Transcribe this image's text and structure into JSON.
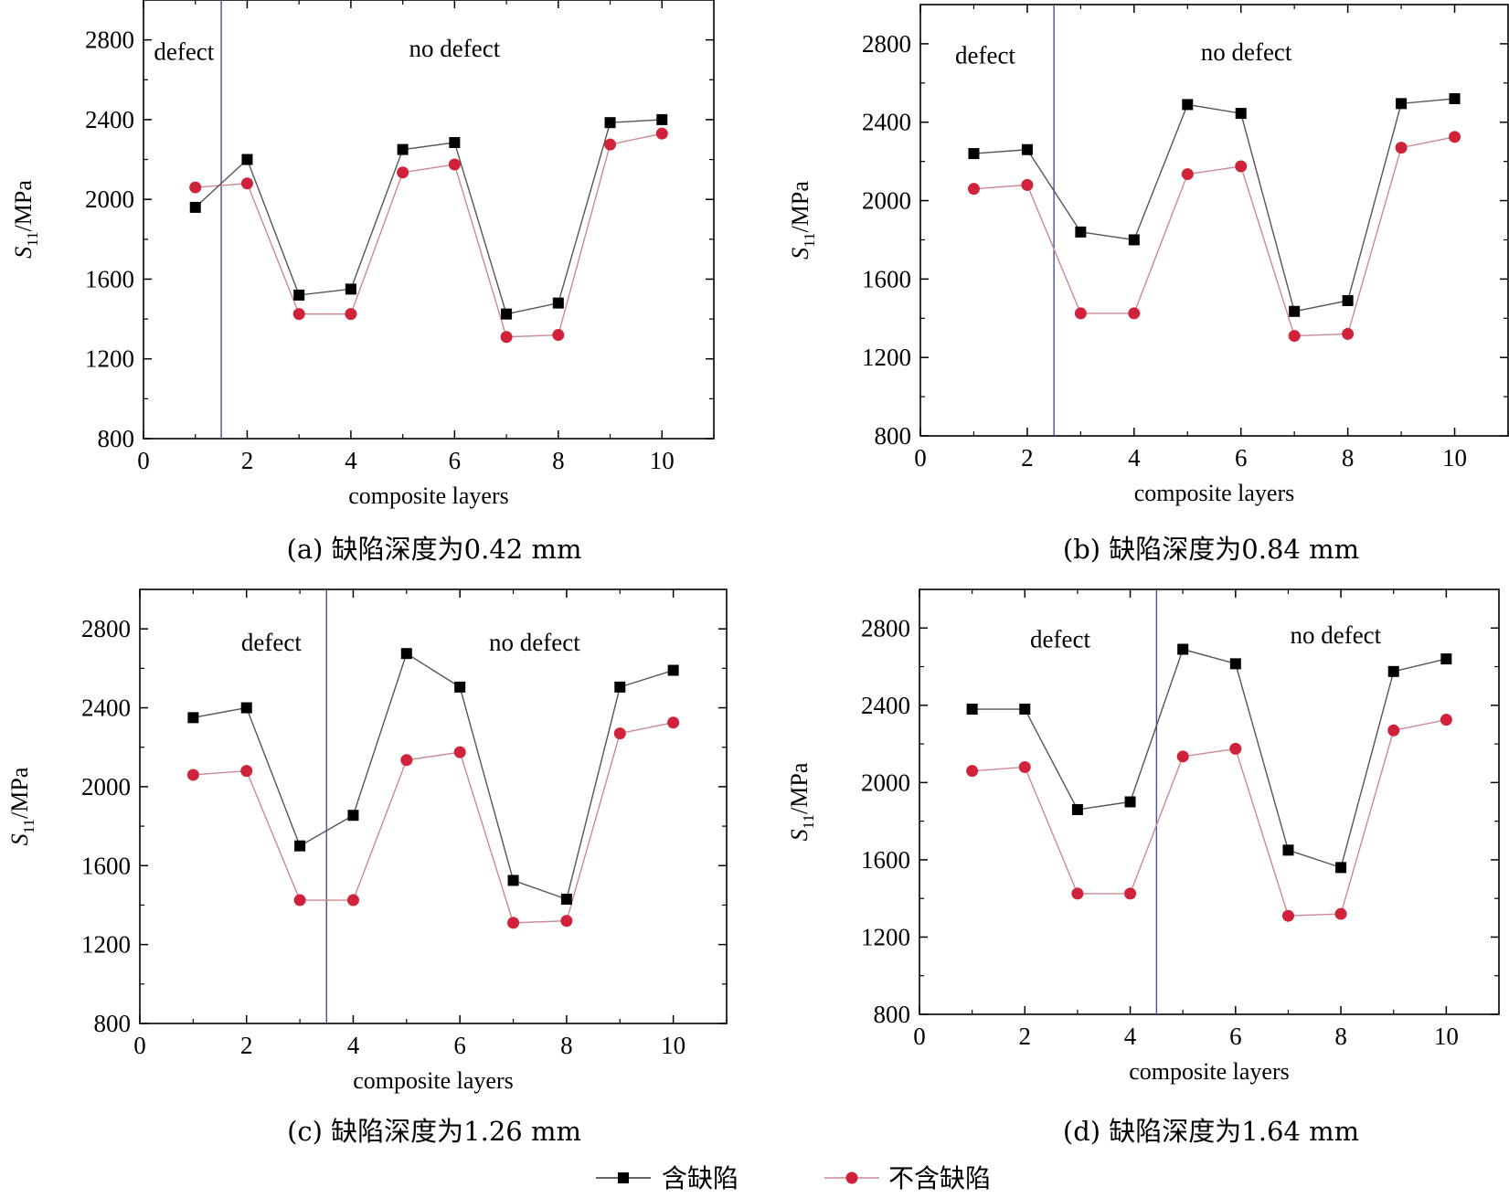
{
  "legend": {
    "series_defect": "含缺陷",
    "series_no_defect": "不含缺陷"
  },
  "colors": {
    "defect": "#000000",
    "no_defect": "#d0223a",
    "divider": "#4b4f8f",
    "defect_line": "#555555",
    "no_defect_line": "#c98a94"
  },
  "chart_data": [
    {
      "type": "line",
      "caption": "(a)  缺陷深度为0.42 mm",
      "xlabel": "composite layers",
      "ylabel_main": "S",
      "ylabel_sub": "11",
      "ylabel_unit": "/MPa",
      "xlim": [
        0,
        11
      ],
      "ylim": [
        800,
        3000
      ],
      "xticks": [
        0,
        2,
        4,
        6,
        8,
        10
      ],
      "yticks": [
        800,
        1200,
        1600,
        2000,
        2400,
        2800
      ],
      "divider_x": 1.5,
      "label_defect": "defect",
      "label_no_defect": "no defect",
      "label_defect_pos": [
        0.2,
        2700
      ],
      "label_no_defect_pos": [
        6,
        2715
      ],
      "x": [
        1,
        2,
        3,
        4,
        5,
        6,
        7,
        8,
        9,
        10
      ],
      "series": [
        {
          "name": "含缺陷",
          "values": [
            1960,
            2200,
            1520,
            1550,
            2250,
            2285,
            1425,
            1480,
            2385,
            2400
          ]
        },
        {
          "name": "不含缺陷",
          "values": [
            2060,
            2080,
            1425,
            1425,
            2135,
            2175,
            1310,
            1320,
            2275,
            2330
          ]
        }
      ]
    },
    {
      "type": "line",
      "caption": "(b)  缺陷深度为0.84 mm",
      "xlabel": "composite layers",
      "ylabel_main": "S",
      "ylabel_sub": "11",
      "ylabel_unit": "/MPa",
      "xlim": [
        0,
        11
      ],
      "ylim": [
        800,
        3000
      ],
      "xticks": [
        0,
        2,
        4,
        6,
        8,
        10
      ],
      "yticks": [
        800,
        1200,
        1600,
        2000,
        2400,
        2800
      ],
      "divider_x": 2.5,
      "label_defect": "defect",
      "label_no_defect": "no defect",
      "label_defect_pos": [
        0.65,
        2700
      ],
      "label_no_defect_pos": [
        6.1,
        2715
      ],
      "x": [
        1,
        2,
        3,
        4,
        5,
        6,
        7,
        8,
        9,
        10
      ],
      "series": [
        {
          "name": "含缺陷",
          "values": [
            2240,
            2260,
            1840,
            1800,
            2490,
            2445,
            1435,
            1490,
            2495,
            2520
          ]
        },
        {
          "name": "不含缺陷",
          "values": [
            2060,
            2080,
            1425,
            1425,
            2135,
            2175,
            1310,
            1320,
            2270,
            2325
          ]
        }
      ]
    },
    {
      "type": "line",
      "caption": "(c)  缺陷深度为1.26 mm",
      "xlabel": "composite layers",
      "ylabel_main": "S",
      "ylabel_sub": "11",
      "ylabel_unit": "/MPa",
      "xlim": [
        0,
        11
      ],
      "ylim": [
        800,
        3000
      ],
      "xticks": [
        0,
        2,
        4,
        6,
        8,
        10
      ],
      "yticks": [
        800,
        1200,
        1600,
        2000,
        2400,
        2800
      ],
      "divider_x": 3.5,
      "label_defect": "defect",
      "label_no_defect": "no defect",
      "label_defect_pos": [
        1.9,
        2690
      ],
      "label_no_defect_pos": [
        7.4,
        2690
      ],
      "x": [
        1,
        2,
        3,
        4,
        5,
        6,
        7,
        8,
        9,
        10
      ],
      "series": [
        {
          "name": "含缺陷",
          "values": [
            2350,
            2400,
            1700,
            1855,
            2675,
            2505,
            1525,
            1430,
            2505,
            2590
          ]
        },
        {
          "name": "不含缺陷",
          "values": [
            2060,
            2080,
            1425,
            1425,
            2135,
            2175,
            1310,
            1320,
            2270,
            2325
          ]
        }
      ]
    },
    {
      "type": "line",
      "caption": "(d)  缺陷深度为1.64 mm",
      "xlabel": "composite layers",
      "ylabel_main": "S",
      "ylabel_sub": "11",
      "ylabel_unit": "/MPa",
      "xlim": [
        0,
        11
      ],
      "ylim": [
        800,
        3000
      ],
      "xticks": [
        0,
        2,
        4,
        6,
        8,
        10
      ],
      "yticks": [
        800,
        1200,
        1600,
        2000,
        2400,
        2800
      ],
      "divider_x": 4.5,
      "label_defect": "defect",
      "label_no_defect": "no defect",
      "label_defect_pos": [
        2.1,
        2700
      ],
      "label_no_defect_pos": [
        7.9,
        2720
      ],
      "x": [
        1,
        2,
        3,
        4,
        5,
        6,
        7,
        8,
        9,
        10
      ],
      "series": [
        {
          "name": "含缺陷",
          "values": [
            2380,
            2380,
            1860,
            1900,
            2690,
            2615,
            1650,
            1560,
            2575,
            2640
          ]
        },
        {
          "name": "不含缺陷",
          "values": [
            2060,
            2080,
            1425,
            1425,
            2135,
            2175,
            1310,
            1320,
            2270,
            2325
          ]
        }
      ]
    }
  ]
}
